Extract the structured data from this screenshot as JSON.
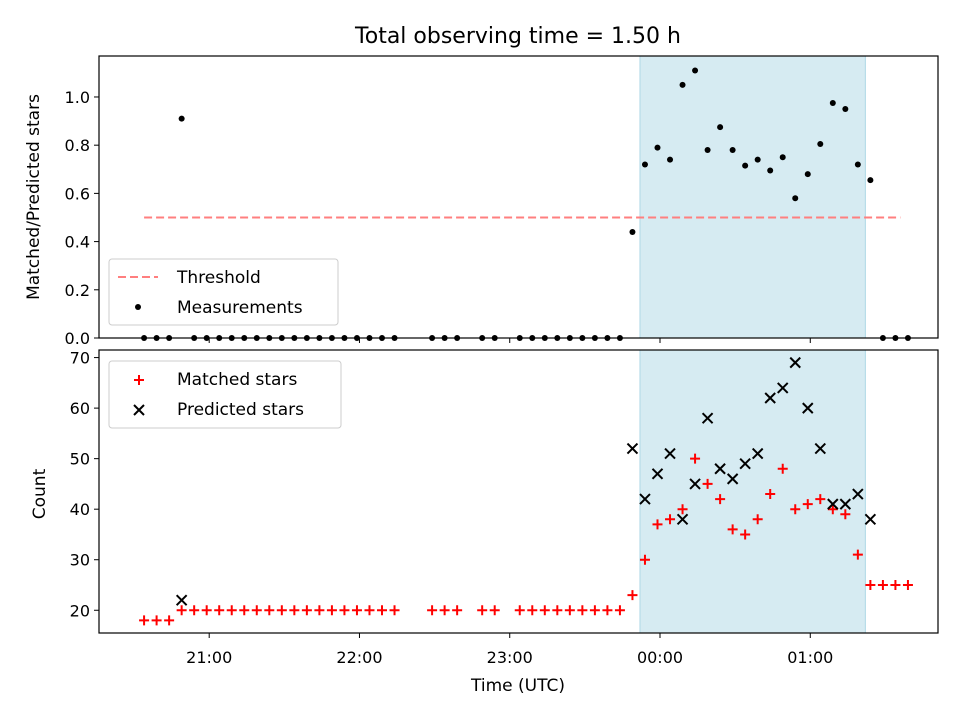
{
  "chart_data": {
    "type": "scatter",
    "title": "Total observing time = 1.50 h",
    "xlabel": "Time (UTC)",
    "x_tick_labels": [
      "21:00",
      "22:00",
      "23:00",
      "00:00",
      "01:00"
    ],
    "highlight_span": {
      "start": "23:52",
      "end": "01:22",
      "color": "#add8e6"
    },
    "panels": [
      {
        "ylabel": "Matched/Predicted stars",
        "ylim": [
          0,
          1.17
        ],
        "yticks": [
          "0.0",
          "0.2",
          "0.4",
          "0.6",
          "0.8",
          "1.0"
        ],
        "legend_position": "lower-left",
        "threshold": {
          "name": "Threshold",
          "value": 0.5,
          "color": "#ff7f7f",
          "x_start": "20:34",
          "x_end": "01:36"
        },
        "measurements": {
          "name": "Measurements",
          "color": "#000000",
          "x": [
            "20:34",
            "20:39",
            "20:44",
            "20:49",
            "20:54",
            "20:59",
            "21:04",
            "21:09",
            "21:14",
            "21:19",
            "21:24",
            "21:29",
            "21:34",
            "21:39",
            "21:44",
            "21:49",
            "21:54",
            "21:59",
            "22:04",
            "22:09",
            "22:14",
            "22:29",
            "22:34",
            "22:39",
            "22:49",
            "22:54",
            "23:04",
            "23:09",
            "23:14",
            "23:19",
            "23:24",
            "23:29",
            "23:34",
            "23:39",
            "23:44",
            "23:49",
            "23:54",
            "23:59",
            "00:04",
            "00:09",
            "00:14",
            "00:19",
            "00:24",
            "00:29",
            "00:34",
            "00:39",
            "00:44",
            "00:49",
            "00:54",
            "00:59",
            "01:04",
            "01:09",
            "01:14",
            "01:19",
            "01:24",
            "01:29",
            "01:34",
            "01:39"
          ],
          "y": [
            0,
            0,
            0,
            0.91,
            0,
            0,
            0,
            0,
            0,
            0,
            0,
            0,
            0,
            0,
            0,
            0,
            0,
            0,
            0,
            0,
            0,
            0,
            0,
            0,
            0,
            0,
            0,
            0,
            0,
            0,
            0,
            0,
            0,
            0,
            0,
            0.44,
            0.72,
            0.79,
            0.74,
            1.05,
            1.11,
            0.78,
            0.875,
            0.78,
            0.715,
            0.74,
            0.695,
            0.75,
            0.58,
            0.68,
            0.805,
            0.975,
            0.95,
            0.72,
            0.655,
            0,
            0,
            0
          ]
        }
      },
      {
        "ylabel": "Count",
        "ylim": [
          15.5,
          71.5
        ],
        "yticks": [
          "20",
          "30",
          "40",
          "50",
          "60",
          "70"
        ],
        "legend_position": "upper-left",
        "series": [
          {
            "name": "Matched stars",
            "marker": "plus",
            "color": "#ff0000",
            "x": [
              "20:34",
              "20:39",
              "20:44",
              "20:49",
              "20:54",
              "20:59",
              "21:04",
              "21:09",
              "21:14",
              "21:19",
              "21:24",
              "21:29",
              "21:34",
              "21:39",
              "21:44",
              "21:49",
              "21:54",
              "21:59",
              "22:04",
              "22:09",
              "22:14",
              "22:29",
              "22:34",
              "22:39",
              "22:49",
              "22:54",
              "23:04",
              "23:09",
              "23:14",
              "23:19",
              "23:24",
              "23:29",
              "23:34",
              "23:39",
              "23:44",
              "23:49",
              "23:54",
              "23:59",
              "00:04",
              "00:09",
              "00:14",
              "00:19",
              "00:24",
              "00:29",
              "00:34",
              "00:39",
              "00:44",
              "00:49",
              "00:54",
              "00:59",
              "01:04",
              "01:09",
              "01:14",
              "01:19",
              "01:24",
              "01:29",
              "01:34",
              "01:39"
            ],
            "y": [
              18,
              18,
              18,
              20,
              20,
              20,
              20,
              20,
              20,
              20,
              20,
              20,
              20,
              20,
              20,
              20,
              20,
              20,
              20,
              20,
              20,
              20,
              20,
              20,
              20,
              20,
              20,
              20,
              20,
              20,
              20,
              20,
              20,
              20,
              20,
              23,
              30,
              37,
              38,
              40,
              50,
              45,
              42,
              36,
              35,
              38,
              43,
              48,
              40,
              41,
              42,
              40,
              39,
              31,
              25,
              25,
              25,
              25
            ]
          },
          {
            "name": "Predicted stars",
            "marker": "x",
            "color": "#000000",
            "x": [
              "20:49",
              "23:49",
              "23:54",
              "23:59",
              "00:04",
              "00:09",
              "00:14",
              "00:19",
              "00:24",
              "00:29",
              "00:34",
              "00:39",
              "00:44",
              "00:49",
              "00:54",
              "00:59",
              "01:04",
              "01:09",
              "01:14",
              "01:19",
              "01:24"
            ],
            "y": [
              22,
              52,
              42,
              47,
              51,
              38,
              45,
              58,
              48,
              46,
              49,
              51,
              62,
              64,
              69,
              60,
              52,
              41,
              41,
              43,
              38
            ]
          }
        ]
      }
    ]
  }
}
